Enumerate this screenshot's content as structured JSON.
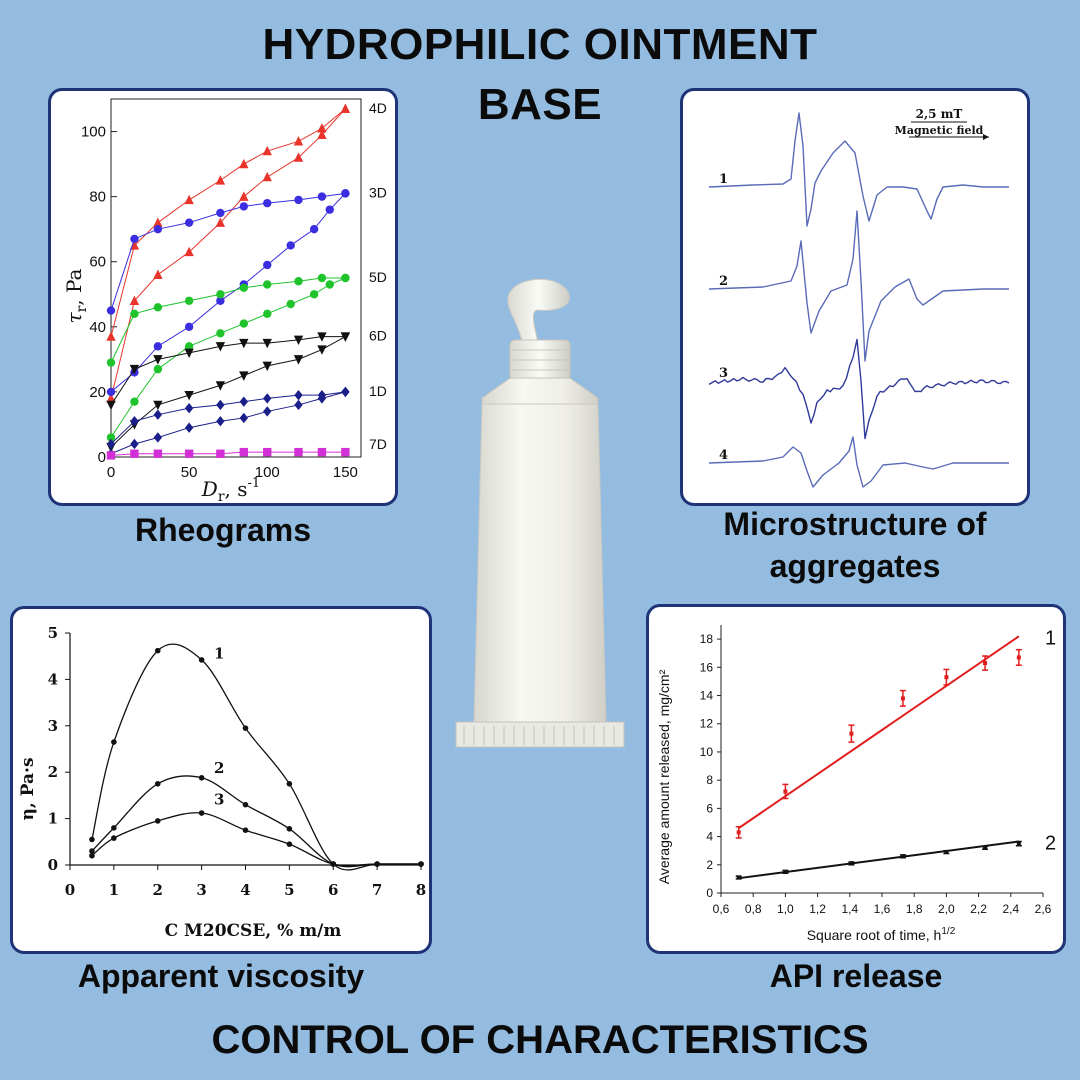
{
  "header": {
    "line1": "HYDROPHILIC OINTMENT",
    "line2": "BASE"
  },
  "footer": {
    "text": "CONTROL OF CHARACTERISTICS"
  },
  "captions": {
    "rheograms": "Rheograms",
    "microstructure_1": "Microstructure of",
    "microstructure_2": "aggregates",
    "viscosity": "Apparent viscosity",
    "release": "API release"
  },
  "illustration": {
    "icon": "ointment-tube-icon"
  },
  "chart_data": [
    {
      "id": "rheograms",
      "type": "line",
      "ylabel_main": "τ",
      "ylabel_sub": "r",
      "ylabel_unit": ", Pa",
      "xlabel_main": "D",
      "xlabel_sub": "r",
      "xlabel_unit": ", s",
      "xlabel_sup": "-1",
      "xlim": [
        0,
        160
      ],
      "ylim": [
        0,
        110
      ],
      "x_ticks": [
        "0",
        "50",
        "100",
        "150"
      ],
      "y_ticks": [
        "0",
        "20",
        "40",
        "60",
        "80",
        "100"
      ],
      "grid": false,
      "series": [
        {
          "name": "4D",
          "color": "#e8342b",
          "marker": "triangle",
          "up": [
            [
              0,
              37
            ],
            [
              15,
              65
            ],
            [
              30,
              72
            ],
            [
              50,
              79
            ],
            [
              70,
              85
            ],
            [
              85,
              90
            ],
            [
              100,
              94
            ],
            [
              120,
              97
            ],
            [
              135,
              101
            ],
            [
              150,
              107
            ]
          ],
          "down": [
            [
              150,
              107
            ],
            [
              135,
              99
            ],
            [
              120,
              92
            ],
            [
              100,
              86
            ],
            [
              85,
              80
            ],
            [
              70,
              72
            ],
            [
              50,
              63
            ],
            [
              30,
              56
            ],
            [
              15,
              48
            ],
            [
              0,
              18
            ]
          ]
        },
        {
          "name": "3D",
          "color": "#3a2ee0",
          "marker": "circle",
          "up": [
            [
              0,
              45
            ],
            [
              15,
              67
            ],
            [
              30,
              70
            ],
            [
              50,
              72
            ],
            [
              70,
              75
            ],
            [
              85,
              77
            ],
            [
              100,
              78
            ],
            [
              120,
              79
            ],
            [
              135,
              80
            ],
            [
              150,
              81
            ]
          ],
          "down": [
            [
              150,
              81
            ],
            [
              140,
              76
            ],
            [
              130,
              70
            ],
            [
              115,
              65
            ],
            [
              100,
              59
            ],
            [
              85,
              53
            ],
            [
              70,
              48
            ],
            [
              50,
              40
            ],
            [
              30,
              34
            ],
            [
              15,
              26
            ],
            [
              0,
              20
            ]
          ]
        },
        {
          "name": "5D",
          "color": "#1fc42b",
          "marker": "circle",
          "up": [
            [
              0,
              29
            ],
            [
              15,
              44
            ],
            [
              30,
              46
            ],
            [
              50,
              48
            ],
            [
              70,
              50
            ],
            [
              85,
              52
            ],
            [
              100,
              53
            ],
            [
              120,
              54
            ],
            [
              135,
              55
            ],
            [
              150,
              55
            ]
          ],
          "down": [
            [
              150,
              55
            ],
            [
              140,
              53
            ],
            [
              130,
              50
            ],
            [
              115,
              47
            ],
            [
              100,
              44
            ],
            [
              85,
              41
            ],
            [
              70,
              38
            ],
            [
              50,
              34
            ],
            [
              30,
              27
            ],
            [
              15,
              17
            ],
            [
              0,
              6
            ]
          ]
        },
        {
          "name": "6D",
          "color": "#111111",
          "marker": "triangle-down",
          "up": [
            [
              0,
              16
            ],
            [
              15,
              27
            ],
            [
              30,
              30
            ],
            [
              50,
              32
            ],
            [
              70,
              34
            ],
            [
              85,
              35
            ],
            [
              100,
              35
            ],
            [
              120,
              36
            ],
            [
              135,
              37
            ],
            [
              150,
              37
            ]
          ],
          "down": [
            [
              150,
              37
            ],
            [
              135,
              33
            ],
            [
              120,
              30
            ],
            [
              100,
              28
            ],
            [
              85,
              25
            ],
            [
              70,
              22
            ],
            [
              50,
              19
            ],
            [
              30,
              16
            ],
            [
              15,
              10
            ],
            [
              0,
              3
            ]
          ]
        },
        {
          "name": "1D",
          "color": "#1b1f8a",
          "marker": "diamond",
          "up": [
            [
              0,
              4
            ],
            [
              15,
              11
            ],
            [
              30,
              13
            ],
            [
              50,
              15
            ],
            [
              70,
              16
            ],
            [
              85,
              17
            ],
            [
              100,
              18
            ],
            [
              120,
              19
            ],
            [
              135,
              19
            ],
            [
              150,
              20
            ]
          ],
          "down": [
            [
              150,
              20
            ],
            [
              135,
              18
            ],
            [
              120,
              16
            ],
            [
              100,
              14
            ],
            [
              85,
              12
            ],
            [
              70,
              11
            ],
            [
              50,
              9
            ],
            [
              30,
              6
            ],
            [
              15,
              4
            ],
            [
              0,
              1
            ]
          ]
        },
        {
          "name": "7D",
          "color": "#d22fd6",
          "marker": "square",
          "up": [
            [
              0,
              0.5
            ],
            [
              15,
              1
            ],
            [
              30,
              1
            ],
            [
              50,
              1
            ],
            [
              70,
              1
            ],
            [
              85,
              1.5
            ],
            [
              100,
              1.5
            ],
            [
              120,
              1.5
            ],
            [
              135,
              1.5
            ],
            [
              150,
              1.5
            ]
          ],
          "down": []
        }
      ]
    },
    {
      "id": "microstructure",
      "type": "line",
      "scale_label": "2,5 mT",
      "axis_label": "Magnetic field",
      "series": [
        {
          "name": "1",
          "color": "#5a6bb8"
        },
        {
          "name": "2",
          "color": "#5a6bb8"
        },
        {
          "name": "3",
          "color": "#2f3a9a"
        },
        {
          "name": "4",
          "color": "#5a6bb8"
        }
      ]
    },
    {
      "id": "viscosity",
      "type": "line",
      "ylabel": "η, Pa·s",
      "xlabel": "C M20CSE, % m/m",
      "xlim": [
        0,
        8
      ],
      "ylim": [
        0,
        5
      ],
      "x_ticks": [
        "0",
        "1",
        "2",
        "3",
        "4",
        "5",
        "6",
        "7",
        "8"
      ],
      "y_ticks": [
        "0",
        "1",
        "2",
        "3",
        "4",
        "5"
      ],
      "grid": false,
      "series": [
        {
          "name": "1",
          "points": [
            [
              0.5,
              0.55
            ],
            [
              1,
              2.65
            ],
            [
              2,
              4.62
            ],
            [
              3,
              4.42
            ],
            [
              4,
              2.95
            ],
            [
              5,
              1.75
            ],
            [
              6,
              0.02
            ],
            [
              7,
              0.02
            ],
            [
              8,
              0.02
            ]
          ]
        },
        {
          "name": "2",
          "points": [
            [
              0.5,
              0.3
            ],
            [
              1,
              0.8
            ],
            [
              2,
              1.75
            ],
            [
              3,
              1.88
            ],
            [
              4,
              1.3
            ],
            [
              5,
              0.78
            ],
            [
              6,
              0.02
            ],
            [
              7,
              0.02
            ],
            [
              8,
              0.02
            ]
          ]
        },
        {
          "name": "3",
          "points": [
            [
              0.5,
              0.2
            ],
            [
              1,
              0.58
            ],
            [
              2,
              0.95
            ],
            [
              3,
              1.12
            ],
            [
              4,
              0.75
            ],
            [
              5,
              0.45
            ],
            [
              6,
              0.02
            ],
            [
              7,
              0.02
            ],
            [
              8,
              0.02
            ]
          ]
        }
      ]
    },
    {
      "id": "release",
      "type": "line",
      "ylabel": "Average amount released,  mg/cm²",
      "xlabel": "Square root of time, h",
      "xlabel_sup": "1/2",
      "xlim": [
        0.6,
        2.6
      ],
      "ylim": [
        0,
        19
      ],
      "x_ticks": [
        "0,6",
        "0,8",
        "1,0",
        "1,2",
        "1,4",
        "1,6",
        "1,8",
        "2,0",
        "2,2",
        "2,4",
        "2,6"
      ],
      "y_ticks": [
        "0",
        "2",
        "4",
        "6",
        "8",
        "10",
        "12",
        "14",
        "16",
        "18"
      ],
      "grid": false,
      "series": [
        {
          "name": "1",
          "color": "#e21d1d",
          "points": [
            [
              0.71,
              4.3
            ],
            [
              1.0,
              7.2
            ],
            [
              1.41,
              11.3
            ],
            [
              1.73,
              13.8
            ],
            [
              2.0,
              15.3
            ],
            [
              2.24,
              16.3
            ],
            [
              2.45,
              16.7
            ]
          ],
          "errors": [
            0.4,
            0.5,
            0.6,
            0.55,
            0.55,
            0.5,
            0.55
          ],
          "fit": [
            [
              0.71,
              4.6
            ],
            [
              2.45,
              18.2
            ]
          ]
        },
        {
          "name": "2",
          "color": "#111111",
          "points": [
            [
              0.71,
              1.1
            ],
            [
              1.0,
              1.5
            ],
            [
              1.41,
              2.1
            ],
            [
              1.73,
              2.6
            ],
            [
              2.0,
              2.9
            ],
            [
              2.24,
              3.2
            ],
            [
              2.45,
              3.5
            ]
          ],
          "errors": [
            0.1,
            0.1,
            0.1,
            0.1,
            0.1,
            0.1,
            0.15
          ],
          "fit": [
            [
              0.71,
              1.05
            ],
            [
              2.45,
              3.65
            ]
          ]
        }
      ]
    }
  ]
}
